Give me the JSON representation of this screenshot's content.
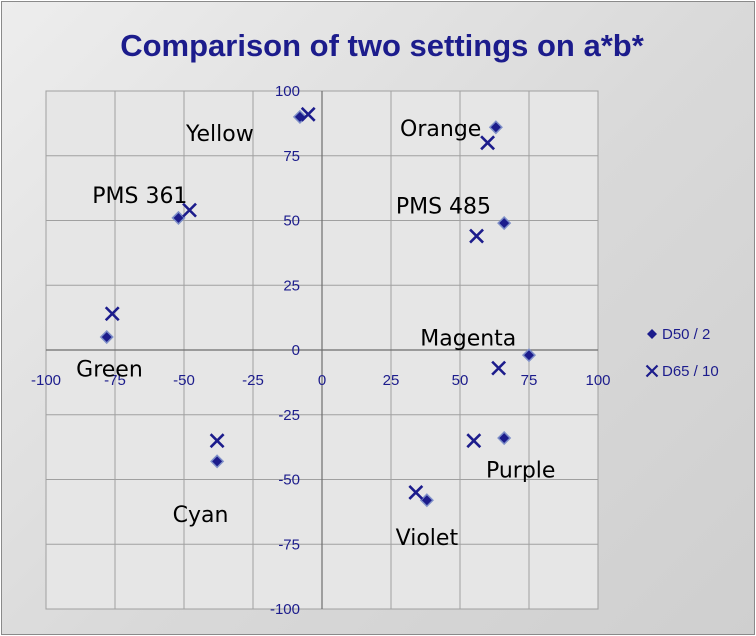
{
  "chart_data": {
    "type": "scatter",
    "title": "Comparison of two settings on a*b*",
    "xlabel": "",
    "ylabel": "",
    "xlim": [
      -100,
      100
    ],
    "ylim": [
      -100,
      100
    ],
    "x_ticks": [
      -100,
      -75,
      -50,
      -25,
      0,
      25,
      50,
      75,
      100
    ],
    "y_ticks": [
      -100,
      -75,
      -50,
      -25,
      0,
      25,
      50,
      75,
      100
    ],
    "grid": true,
    "legend_position": "right",
    "series": [
      {
        "name": "D50 / 2",
        "marker": "diamond",
        "color": "#1c1c8c",
        "points": [
          {
            "x": -8,
            "y": 90
          },
          {
            "x": 63,
            "y": 86
          },
          {
            "x": -52,
            "y": 51
          },
          {
            "x": 66,
            "y": 49
          },
          {
            "x": -78,
            "y": 5
          },
          {
            "x": 75,
            "y": -2
          },
          {
            "x": -38,
            "y": -43
          },
          {
            "x": 66,
            "y": -34
          },
          {
            "x": 38,
            "y": -58
          }
        ]
      },
      {
        "name": "D65 / 10",
        "marker": "x",
        "color": "#1c1c8c",
        "points": [
          {
            "x": -5,
            "y": 91
          },
          {
            "x": 60,
            "y": 80
          },
          {
            "x": -48,
            "y": 54
          },
          {
            "x": 56,
            "y": 44
          },
          {
            "x": -76,
            "y": 14
          },
          {
            "x": 64,
            "y": -7
          },
          {
            "x": -38,
            "y": -35
          },
          {
            "x": 55,
            "y": -35
          },
          {
            "x": 34,
            "y": -55
          }
        ]
      }
    ],
    "annotations": [
      {
        "text": "Yellow",
        "x": -37,
        "y": 83
      },
      {
        "text": "Orange",
        "x": 43,
        "y": 85
      },
      {
        "text": "PMS 361",
        "x": -66,
        "y": 59
      },
      {
        "text": "PMS 485",
        "x": 44,
        "y": 55
      },
      {
        "text": "Green",
        "x": -77,
        "y": -8
      },
      {
        "text": "Magenta",
        "x": 53,
        "y": 4
      },
      {
        "text": "Cyan",
        "x": -44,
        "y": -64
      },
      {
        "text": "Purple",
        "x": 72,
        "y": -47
      },
      {
        "text": "Violet",
        "x": 38,
        "y": -73
      }
    ]
  }
}
